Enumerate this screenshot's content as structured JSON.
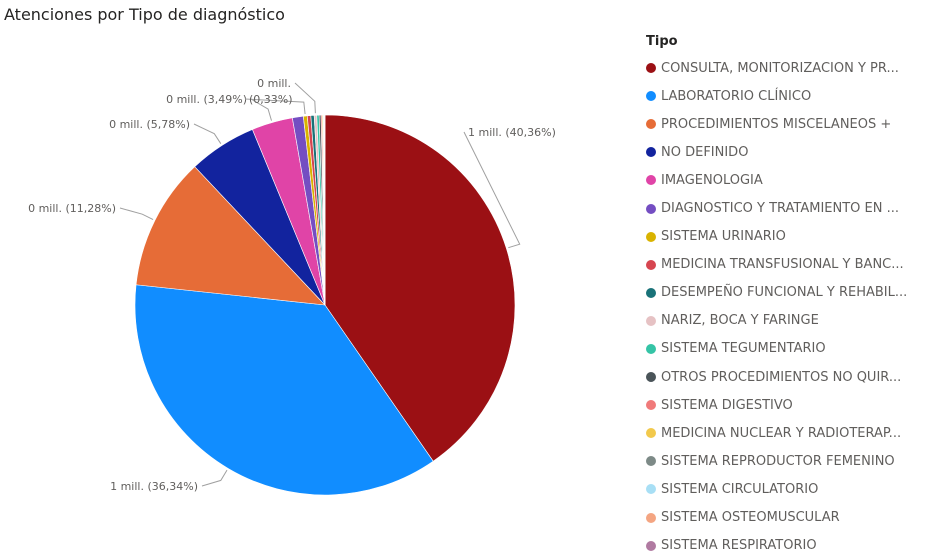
{
  "chart_data": {
    "type": "pie",
    "title": "Atenciones por Tipo de diagnóstico",
    "legend_title": "Tipo",
    "legend_placement": "right",
    "slices": [
      {
        "name": "CONSULTA, MONITORIZACION Y PR...",
        "percent": 40.36,
        "color": "#9b1014",
        "label": "1 mill. (40,36%)"
      },
      {
        "name": "LABORATORIO CLÍNICO",
        "percent": 36.34,
        "color": "#118dff",
        "label": "1 mill. (36,34%)"
      },
      {
        "name": "PROCEDIMIENTOS MISCELANEOS +",
        "percent": 11.28,
        "color": "#e66c37",
        "label": "0 mill. (11,28%)"
      },
      {
        "name": "NO DEFINIDO",
        "percent": 5.78,
        "color": "#12239e",
        "label": "0 mill. (5,78%)"
      },
      {
        "name": "IMAGENOLOGIA",
        "percent": 3.49,
        "color": "#e044a7",
        "label": "0 mill. (3,49%)"
      },
      {
        "name": "DIAGNOSTICO Y TRATAMIENTO EN ...",
        "percent": 0.93,
        "color": "#744ec2",
        "label": ""
      },
      {
        "name": "SISTEMA URINARIO",
        "percent": 0.33,
        "color": "#d9b300",
        "label": "(0,33%)"
      },
      {
        "name": "MEDICINA TRANSFUSIONAL Y BANC...",
        "percent": 0.3,
        "color": "#d64550",
        "label": ""
      },
      {
        "name": "DESEMPEÑO FUNCIONAL Y REHABIL...",
        "percent": 0.28,
        "color": "#197278",
        "label": ""
      },
      {
        "name": "NARIZ, BOCA Y FARINGE",
        "percent": 0.22,
        "color": "#e6c2c4",
        "label": "0 mill."
      },
      {
        "name": "SISTEMA TEGUMENTARIO",
        "percent": 0.2,
        "color": "#35c4a6",
        "label": ""
      },
      {
        "name": "OTROS PROCEDIMIENTOS NO QUIR...",
        "percent": 0.16,
        "color": "#4a5459",
        "label": ""
      },
      {
        "name": "SISTEMA DIGESTIVO",
        "percent": 0.1,
        "color": "#f07a7a",
        "label": ""
      },
      {
        "name": "MEDICINA NUCLEAR Y RADIOTERAP...",
        "percent": 0.08,
        "color": "#f2c94c",
        "label": ""
      },
      {
        "name": "SISTEMA REPRODUCTOR FEMENINO",
        "percent": 0.06,
        "color": "#7d8a87",
        "label": ""
      },
      {
        "name": "SISTEMA CIRCULATORIO",
        "percent": 0.05,
        "color": "#a8dff5",
        "label": ""
      },
      {
        "name": "SISTEMA OSTEOMUSCULAR",
        "percent": 0.03,
        "color": "#f4a582",
        "label": ""
      },
      {
        "name": "SISTEMA RESPIRATORIO",
        "percent": 0.01,
        "color": "#b07aa1",
        "label": ""
      }
    ]
  }
}
